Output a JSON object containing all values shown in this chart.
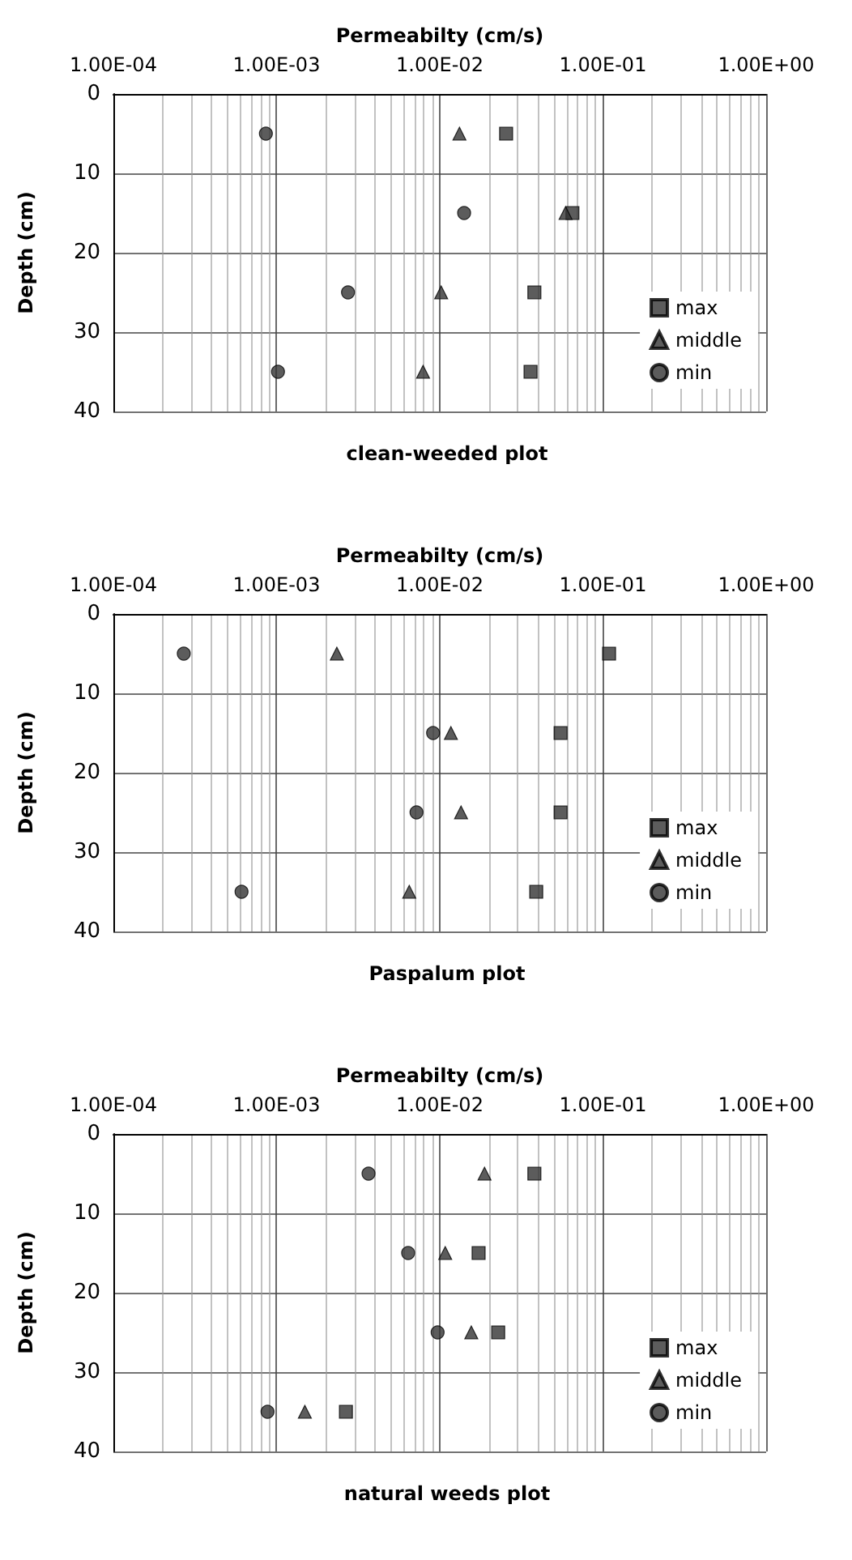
{
  "chart_data": [
    {
      "type": "scatter",
      "title": "clean-weeded plot",
      "xlabel": "Permeabilty (cm/s)",
      "ylabel": "Depth (cm)",
      "log": "x",
      "grid": true,
      "legend": "bottom right",
      "xlim": [
        0.0001,
        1
      ],
      "xticks": [
        {
          "value": 0.0001,
          "label": "1.00E-04"
        },
        {
          "value": 0.001,
          "label": "1.00E-03"
        },
        {
          "value": 0.01,
          "label": "1.00E-02"
        },
        {
          "value": 0.1,
          "label": "1.00E-01"
        },
        {
          "value": 1,
          "label": "1.00E+00"
        }
      ],
      "ylim": [
        40,
        0
      ],
      "yticks": [
        0,
        10,
        20,
        30,
        40
      ],
      "series": [
        {
          "name": "max",
          "color": "#333333",
          "marker": "square",
          "x": [
            0.0255,
            0.065,
            0.038,
            0.036
          ],
          "values": [
            5,
            15,
            25,
            35
          ]
        },
        {
          "name": "middle",
          "color": "#333333",
          "marker": "triangle",
          "x": [
            0.0132,
            0.059,
            0.0102,
            0.0079
          ],
          "values": [
            5,
            15,
            25,
            35
          ]
        },
        {
          "name": "min",
          "color": "#333333",
          "marker": "circle",
          "x": [
            0.00086,
            0.0141,
            0.00274,
            0.00102
          ],
          "values": [
            5,
            15,
            25,
            35
          ]
        }
      ]
    },
    {
      "type": "scatter",
      "title": "Paspalum plot",
      "xlabel": "Permeabilty (cm/s)",
      "ylabel": "Depth (cm)",
      "log": "x",
      "grid": true,
      "legend": "bottom right",
      "xlim": [
        0.0001,
        1
      ],
      "xticks": [
        {
          "value": 0.0001,
          "label": "1.00E-04"
        },
        {
          "value": 0.001,
          "label": "1.00E-03"
        },
        {
          "value": 0.01,
          "label": "1.00E-02"
        },
        {
          "value": 0.1,
          "label": "1.00E-01"
        },
        {
          "value": 1,
          "label": "1.00E+00"
        }
      ],
      "ylim": [
        40,
        0
      ],
      "yticks": [
        0,
        10,
        20,
        30,
        40
      ],
      "series": [
        {
          "name": "max",
          "color": "#333333",
          "marker": "square",
          "x": [
            0.109,
            0.055,
            0.055,
            0.039
          ],
          "values": [
            5,
            15,
            25,
            35
          ]
        },
        {
          "name": "middle",
          "color": "#333333",
          "marker": "triangle",
          "x": [
            0.00234,
            0.0117,
            0.0135,
            0.0065
          ],
          "values": [
            5,
            15,
            25,
            35
          ]
        },
        {
          "name": "min",
          "color": "#333333",
          "marker": "circle",
          "x": [
            0.00027,
            0.0091,
            0.0072,
            0.00061
          ],
          "values": [
            5,
            15,
            25,
            35
          ]
        }
      ]
    },
    {
      "type": "scatter",
      "title": "natural weeds plot",
      "xlabel": "Permeabilty (cm/s)",
      "ylabel": "Depth (cm)",
      "log": "x",
      "grid": true,
      "legend": "bottom right",
      "xlim": [
        0.0001,
        1
      ],
      "xticks": [
        {
          "value": 0.0001,
          "label": "1.00E-04"
        },
        {
          "value": 0.001,
          "label": "1.00E-03"
        },
        {
          "value": 0.01,
          "label": "1.00E-02"
        },
        {
          "value": 0.1,
          "label": "1.00E-01"
        },
        {
          "value": 1,
          "label": "1.00E+00"
        }
      ],
      "ylim": [
        40,
        0
      ],
      "yticks": [
        0,
        10,
        20,
        30,
        40
      ],
      "series": [
        {
          "name": "max",
          "color": "#333333",
          "marker": "square",
          "x": [
            0.038,
            0.0173,
            0.0228,
            0.00266
          ],
          "values": [
            5,
            15,
            25,
            35
          ]
        },
        {
          "name": "middle",
          "color": "#333333",
          "marker": "triangle",
          "x": [
            0.0188,
            0.0108,
            0.0156,
            0.00149
          ],
          "values": [
            5,
            15,
            25,
            35
          ]
        },
        {
          "name": "min",
          "color": "#333333",
          "marker": "circle",
          "x": [
            0.00366,
            0.0064,
            0.0097,
            0.00088
          ],
          "values": [
            5,
            15,
            25,
            35
          ]
        }
      ]
    }
  ]
}
